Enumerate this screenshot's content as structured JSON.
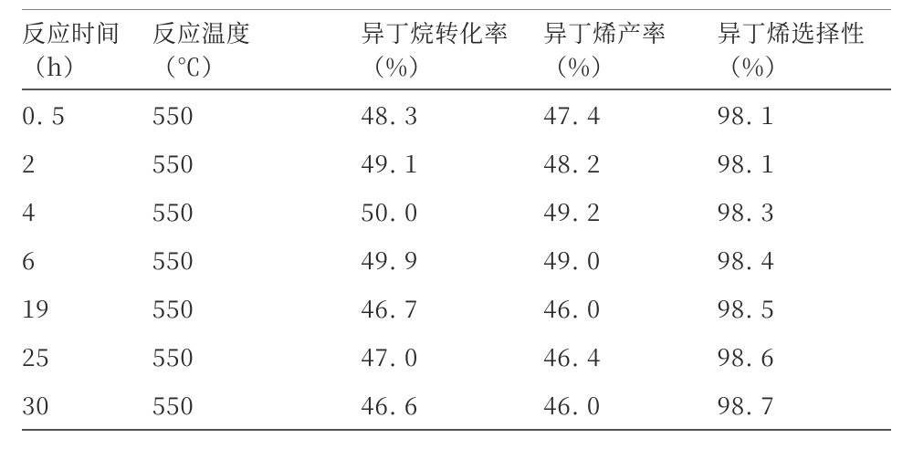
{
  "table": {
    "type": "table",
    "colors": {
      "background": "#ffffff",
      "text": "#2b2b2b",
      "top_rule": "#808080",
      "heavy_rule": "#555555"
    },
    "font": {
      "family": "SimSun",
      "size_pt": 20
    },
    "column_widths_pct": [
      15,
      24,
      21,
      20,
      20
    ],
    "columns": [
      {
        "label": "反应时间",
        "unit": "（h）"
      },
      {
        "label": "反应温度",
        "unit": "（℃）"
      },
      {
        "label": "异丁烷转化率",
        "unit": "（%）"
      },
      {
        "label": "异丁烯产率",
        "unit": "（%）"
      },
      {
        "label": "异丁烯选择性",
        "unit": "（%）"
      }
    ],
    "rows": [
      [
        "0. 5",
        "550",
        "48. 3",
        "47. 4",
        "98. 1"
      ],
      [
        "2",
        "550",
        "49. 1",
        "48. 2",
        "98. 1"
      ],
      [
        "4",
        "550",
        "50. 0",
        "49. 2",
        "98. 3"
      ],
      [
        "6",
        "550",
        "49. 9",
        "49. 0",
        "98. 4"
      ],
      [
        "19",
        "550",
        "46. 7",
        "46. 0",
        "98. 5"
      ],
      [
        "25",
        "550",
        "47. 0",
        "46. 4",
        "98. 6"
      ],
      [
        "30",
        "550",
        "46. 6",
        "46. 0",
        "98. 7"
      ]
    ]
  }
}
